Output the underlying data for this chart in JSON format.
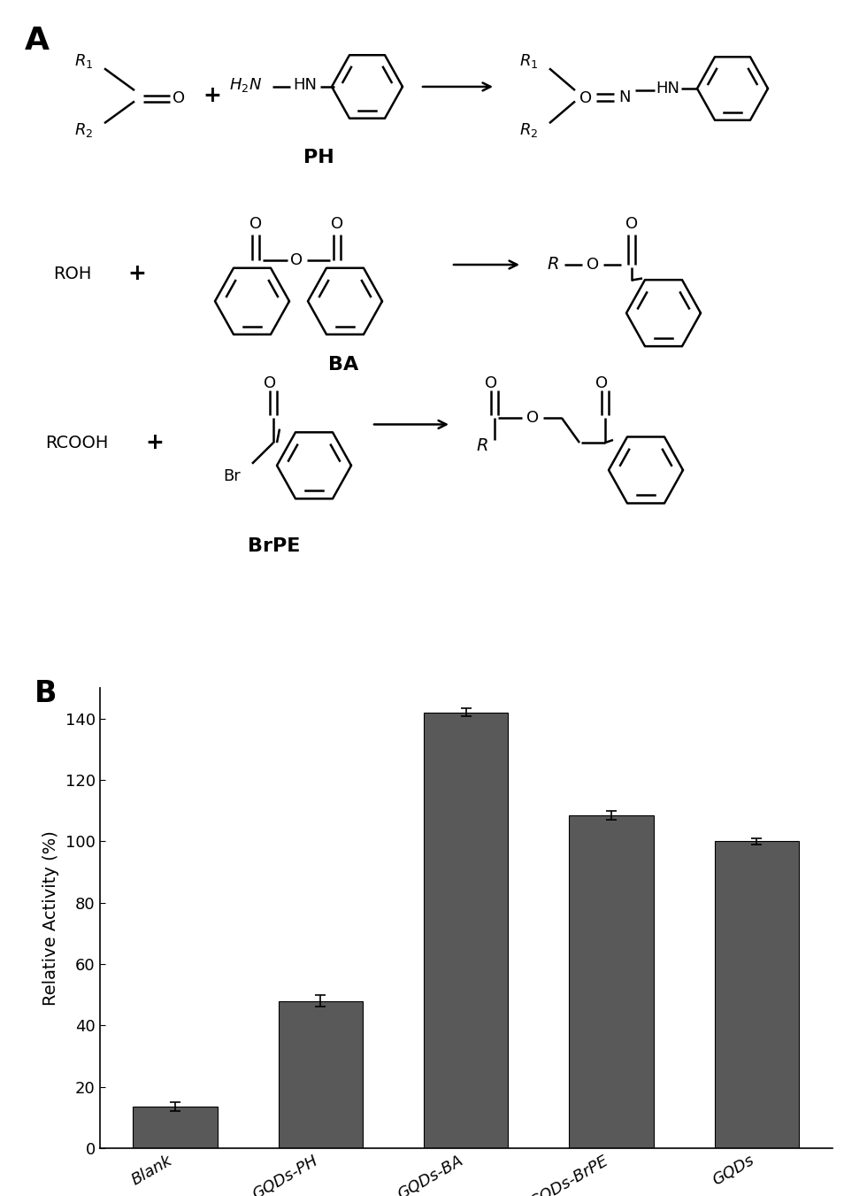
{
  "panel_label_A": "A",
  "panel_label_B": "B",
  "bar_categories": [
    "Blank",
    "GQDs-PH",
    "GQDs-BA",
    "GQDs-BrPE",
    "GQDs"
  ],
  "bar_values": [
    13.5,
    48.0,
    142.0,
    108.5,
    100.0
  ],
  "bar_errors": [
    1.5,
    1.8,
    1.2,
    1.5,
    1.0
  ],
  "bar_color": "#595959",
  "bar_edge_color": "#000000",
  "ylabel": "Relative Activity (%)",
  "ylim": [
    0,
    150
  ],
  "yticks": [
    0,
    20,
    40,
    60,
    80,
    100,
    120,
    140
  ],
  "background_color": "#ffffff",
  "label_fontsize": 14,
  "tick_fontsize": 13,
  "panel_fontsize": 24,
  "reaction_label_PH": "PH",
  "reaction_label_BA": "BA",
  "reaction_label_BrPE": "BrPE"
}
